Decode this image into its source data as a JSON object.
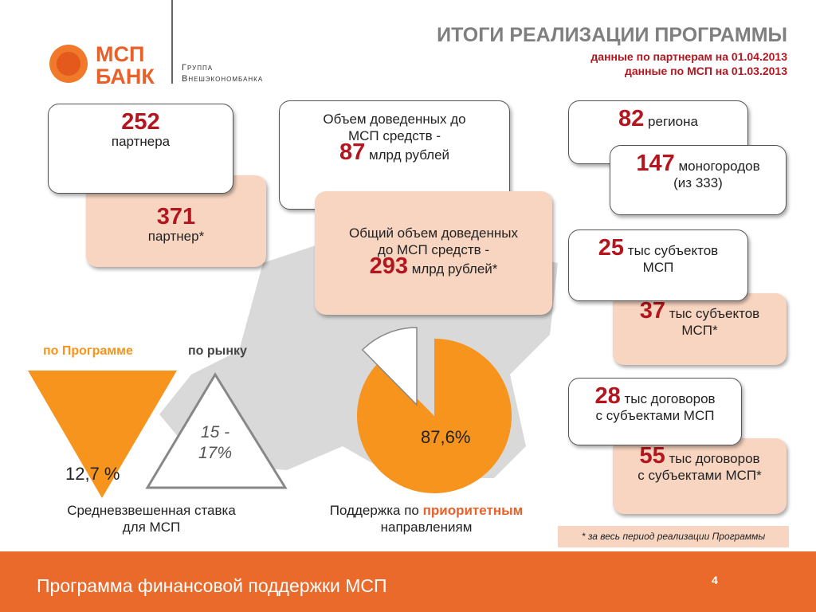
{
  "header": {
    "title": "ИТОГИ РЕАЛИЗАЦИИ ПРОГРАММЫ",
    "subtitle_lines": [
      "данные по партнерам на 01.04.2013",
      "данные по МСП на 01.03.2013"
    ]
  },
  "logo": {
    "brand_lines": [
      "МСП",
      "БАНК"
    ],
    "group_lines": [
      "Группа",
      "Внешэкономбанка"
    ]
  },
  "cards": [
    {
      "number": 252,
      "lines": [
        "партнера"
      ]
    },
    {
      "number": 371,
      "lines": [
        "партнер*"
      ]
    },
    {
      "lead": [
        "Объем доведенных до",
        "МСП средств -"
      ],
      "number": 87,
      "lines": [
        "млрд рублей"
      ]
    },
    {
      "lead": [
        "Общий объем доведенных",
        "до МСП средств -"
      ],
      "number": 293,
      "lines": [
        "млрд рублей*"
      ]
    },
    {
      "number": 82,
      "lines": [
        "региона"
      ]
    },
    {
      "number": 147,
      "lines": [
        "моногородов",
        "(из 333)"
      ]
    },
    {
      "number": 25,
      "lines": [
        "тыс субъектов",
        "МСП"
      ]
    },
    {
      "number": 37,
      "lines": [
        "тыс субъектов",
        "МСП*"
      ]
    },
    {
      "number": 28,
      "lines": [
        "тыс договоров",
        "с субъектами МСП"
      ]
    },
    {
      "number": 55,
      "lines": [
        "тыс договоров",
        "с субъектами МСП*"
      ]
    }
  ],
  "rates": {
    "program_label": "по Программе",
    "market_label": "по рынку",
    "program_rate": "12,7 %",
    "market_rate": [
      "15 -",
      "17%"
    ],
    "caption": [
      "Средневзвешенная ставка",
      "для МСП"
    ]
  },
  "pie": {
    "values": [
      87.6
    ],
    "value_labels": [
      "87,6%"
    ],
    "caption": [
      "Поддержка по",
      "приоритетным",
      "направлениям"
    ]
  },
  "footnote": "* за весь период реализации Программы",
  "footer": {
    "title": "Программа финансовой поддержки МСП",
    "page": 4
  }
}
